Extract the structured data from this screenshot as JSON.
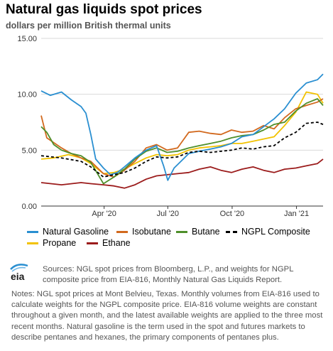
{
  "header": {
    "title": "Natural gas liquids spot prices",
    "subtitle": "dollars per million British thermal units"
  },
  "chart_data": {
    "type": "line",
    "title": "Natural gas liquids spot prices",
    "subtitle": "dollars per million British thermal units",
    "xlabel": "",
    "ylabel": "",
    "x_start": "2020-01-02",
    "x_end": "2021-02-08",
    "ylim": [
      0,
      15
    ],
    "y_ticks": [
      "0.00",
      "5.00",
      "10.00",
      "15.00"
    ],
    "x_ticks": [
      {
        "label": "Apr '20",
        "date": "2020-04-01"
      },
      {
        "label": "Jul '20",
        "date": "2020-07-01"
      },
      {
        "label": "Oct '20",
        "date": "2020-10-01"
      },
      {
        "label": "Jan '21",
        "date": "2021-01-01"
      }
    ],
    "grid": true,
    "legend_position": "bottom",
    "series": [
      {
        "name": "Natural Gasoline",
        "color": "#2a8fd1",
        "dash": "none",
        "points": [
          [
            "2020-01-02",
            10.3
          ],
          [
            "2020-01-15",
            9.9
          ],
          [
            "2020-01-31",
            10.2
          ],
          [
            "2020-02-14",
            9.5
          ],
          [
            "2020-02-28",
            8.9
          ],
          [
            "2020-03-06",
            8.3
          ],
          [
            "2020-03-13",
            6.4
          ],
          [
            "2020-03-20",
            4.2
          ],
          [
            "2020-03-31",
            3.4
          ],
          [
            "2020-04-10",
            2.8
          ],
          [
            "2020-04-20",
            3.0
          ],
          [
            "2020-04-30",
            3.5
          ],
          [
            "2020-05-15",
            4.3
          ],
          [
            "2020-05-31",
            5.0
          ],
          [
            "2020-06-15",
            5.4
          ],
          [
            "2020-06-25",
            3.6
          ],
          [
            "2020-07-01",
            2.3
          ],
          [
            "2020-07-10",
            3.4
          ],
          [
            "2020-07-31",
            4.7
          ],
          [
            "2020-08-15",
            4.9
          ],
          [
            "2020-08-31",
            5.1
          ],
          [
            "2020-09-15",
            5.3
          ],
          [
            "2020-09-30",
            5.6
          ],
          [
            "2020-10-15",
            6.2
          ],
          [
            "2020-10-31",
            6.4
          ],
          [
            "2020-11-15",
            7.1
          ],
          [
            "2020-11-30",
            7.8
          ],
          [
            "2020-12-15",
            8.7
          ],
          [
            "2020-12-31",
            10.1
          ],
          [
            "2021-01-15",
            11.0
          ],
          [
            "2021-01-31",
            11.3
          ],
          [
            "2021-02-08",
            11.8
          ]
        ]
      },
      {
        "name": "Isobutane",
        "color": "#d2691e",
        "dash": "none",
        "points": [
          [
            "2020-01-02",
            8.1
          ],
          [
            "2020-01-10",
            6.1
          ],
          [
            "2020-01-31",
            5.2
          ],
          [
            "2020-02-14",
            4.7
          ],
          [
            "2020-02-28",
            4.3
          ],
          [
            "2020-03-13",
            4.0
          ],
          [
            "2020-03-31",
            2.9
          ],
          [
            "2020-04-15",
            2.6
          ],
          [
            "2020-04-30",
            3.2
          ],
          [
            "2020-05-15",
            4.0
          ],
          [
            "2020-05-31",
            5.2
          ],
          [
            "2020-06-15",
            5.5
          ],
          [
            "2020-06-30",
            5.0
          ],
          [
            "2020-07-15",
            5.2
          ],
          [
            "2020-07-31",
            6.6
          ],
          [
            "2020-08-15",
            6.7
          ],
          [
            "2020-08-31",
            6.5
          ],
          [
            "2020-09-15",
            6.4
          ],
          [
            "2020-09-30",
            6.8
          ],
          [
            "2020-10-15",
            6.6
          ],
          [
            "2020-10-31",
            6.7
          ],
          [
            "2020-11-15",
            7.2
          ],
          [
            "2020-11-30",
            6.9
          ],
          [
            "2020-12-15",
            7.9
          ],
          [
            "2020-12-31",
            8.7
          ],
          [
            "2021-01-15",
            9.0
          ],
          [
            "2021-01-31",
            9.3
          ],
          [
            "2021-02-08",
            9.6
          ]
        ]
      },
      {
        "name": "Butane",
        "color": "#4e8f2b",
        "dash": "none",
        "points": [
          [
            "2020-01-02",
            7.1
          ],
          [
            "2020-01-10",
            6.6
          ],
          [
            "2020-01-20",
            5.5
          ],
          [
            "2020-01-31",
            5.0
          ],
          [
            "2020-02-14",
            4.7
          ],
          [
            "2020-02-28",
            4.5
          ],
          [
            "2020-03-13",
            3.9
          ],
          [
            "2020-03-31",
            2.0
          ],
          [
            "2020-04-15",
            2.6
          ],
          [
            "2020-04-30",
            3.3
          ],
          [
            "2020-05-15",
            4.2
          ],
          [
            "2020-05-31",
            4.9
          ],
          [
            "2020-06-15",
            5.2
          ],
          [
            "2020-06-30",
            4.8
          ],
          [
            "2020-07-15",
            4.9
          ],
          [
            "2020-07-31",
            5.2
          ],
          [
            "2020-08-15",
            5.4
          ],
          [
            "2020-08-31",
            5.6
          ],
          [
            "2020-09-15",
            5.8
          ],
          [
            "2020-09-30",
            6.1
          ],
          [
            "2020-10-15",
            6.3
          ],
          [
            "2020-10-31",
            6.4
          ],
          [
            "2020-11-15",
            6.8
          ],
          [
            "2020-11-30",
            7.3
          ],
          [
            "2020-12-15",
            7.5
          ],
          [
            "2020-12-31",
            8.5
          ],
          [
            "2021-01-15",
            9.2
          ],
          [
            "2021-01-31",
            9.6
          ],
          [
            "2021-02-08",
            9.0
          ]
        ]
      },
      {
        "name": "NGPL Composite",
        "color": "#000000",
        "dash": "4,3",
        "points": [
          [
            "2020-01-02",
            4.5
          ],
          [
            "2020-01-31",
            4.3
          ],
          [
            "2020-02-28",
            4.0
          ],
          [
            "2020-03-13",
            3.5
          ],
          [
            "2020-03-31",
            2.6
          ],
          [
            "2020-04-15",
            2.8
          ],
          [
            "2020-04-30",
            3.0
          ],
          [
            "2020-05-15",
            3.4
          ],
          [
            "2020-05-31",
            4.0
          ],
          [
            "2020-06-15",
            4.4
          ],
          [
            "2020-06-30",
            4.3
          ],
          [
            "2020-07-15",
            4.4
          ],
          [
            "2020-07-31",
            4.8
          ],
          [
            "2020-08-15",
            4.9
          ],
          [
            "2020-08-31",
            4.8
          ],
          [
            "2020-09-15",
            4.9
          ],
          [
            "2020-09-30",
            5.0
          ],
          [
            "2020-10-15",
            5.2
          ],
          [
            "2020-10-31",
            5.1
          ],
          [
            "2020-11-15",
            5.3
          ],
          [
            "2020-11-30",
            5.4
          ],
          [
            "2020-12-15",
            6.1
          ],
          [
            "2020-12-31",
            6.6
          ],
          [
            "2021-01-15",
            7.4
          ],
          [
            "2021-01-31",
            7.5
          ],
          [
            "2021-02-08",
            7.3
          ]
        ]
      },
      {
        "name": "Propane",
        "color": "#f2c200",
        "dash": "none",
        "points": [
          [
            "2020-01-02",
            4.2
          ],
          [
            "2020-01-20",
            4.3
          ],
          [
            "2020-02-10",
            4.6
          ],
          [
            "2020-02-28",
            4.3
          ],
          [
            "2020-03-13",
            3.8
          ],
          [
            "2020-03-31",
            2.9
          ],
          [
            "2020-04-15",
            3.0
          ],
          [
            "2020-04-30",
            3.3
          ],
          [
            "2020-05-15",
            3.8
          ],
          [
            "2020-05-31",
            4.3
          ],
          [
            "2020-06-15",
            4.6
          ],
          [
            "2020-06-30",
            4.5
          ],
          [
            "2020-07-15",
            4.6
          ],
          [
            "2020-07-31",
            5.0
          ],
          [
            "2020-08-15",
            5.2
          ],
          [
            "2020-08-31",
            5.3
          ],
          [
            "2020-09-15",
            5.4
          ],
          [
            "2020-09-30",
            5.6
          ],
          [
            "2020-10-15",
            5.6
          ],
          [
            "2020-10-31",
            5.8
          ],
          [
            "2020-11-15",
            6.0
          ],
          [
            "2020-11-30",
            6.2
          ],
          [
            "2020-12-15",
            7.2
          ],
          [
            "2020-12-31",
            8.4
          ],
          [
            "2021-01-15",
            10.2
          ],
          [
            "2021-01-31",
            10.0
          ],
          [
            "2021-02-08",
            9.2
          ]
        ]
      },
      {
        "name": "Ethane",
        "color": "#9b1b1b",
        "dash": "none",
        "points": [
          [
            "2020-01-02",
            2.1
          ],
          [
            "2020-01-31",
            1.9
          ],
          [
            "2020-02-28",
            2.1
          ],
          [
            "2020-03-13",
            2.0
          ],
          [
            "2020-03-31",
            1.9
          ],
          [
            "2020-04-15",
            1.8
          ],
          [
            "2020-04-30",
            1.6
          ],
          [
            "2020-05-15",
            1.9
          ],
          [
            "2020-05-31",
            2.4
          ],
          [
            "2020-06-15",
            2.7
          ],
          [
            "2020-06-30",
            2.8
          ],
          [
            "2020-07-15",
            2.9
          ],
          [
            "2020-07-31",
            3.0
          ],
          [
            "2020-08-15",
            3.3
          ],
          [
            "2020-08-31",
            3.5
          ],
          [
            "2020-09-15",
            3.2
          ],
          [
            "2020-09-30",
            3.0
          ],
          [
            "2020-10-15",
            3.3
          ],
          [
            "2020-10-31",
            3.5
          ],
          [
            "2020-11-15",
            3.2
          ],
          [
            "2020-11-30",
            3.0
          ],
          [
            "2020-12-15",
            3.3
          ],
          [
            "2020-12-31",
            3.4
          ],
          [
            "2021-01-15",
            3.6
          ],
          [
            "2021-01-31",
            3.8
          ],
          [
            "2021-02-08",
            4.2
          ]
        ]
      }
    ]
  },
  "legend": {
    "items": [
      {
        "label": "Natural Gasoline",
        "color": "#2a8fd1",
        "dashed": false
      },
      {
        "label": "Isobutane",
        "color": "#d2691e",
        "dashed": false
      },
      {
        "label": "Butane",
        "color": "#4e8f2b",
        "dashed": false
      },
      {
        "label": "NGPL Composite",
        "color": "#000000",
        "dashed": true
      },
      {
        "label": "Propane",
        "color": "#f2c200",
        "dashed": false
      },
      {
        "label": "Ethane",
        "color": "#9b1b1b",
        "dashed": false
      }
    ]
  },
  "footer": {
    "logo_text": "eia",
    "sources": "Sources: NGL spot prices from Bloomberg, L.P., and weights for NGPL composite price from EIA-816, Monthly Natural Gas Liquids Report.",
    "notes": "Notes: NGL spot prices at Mont Belvieu, Texas. Monthly volumes from EIA-816 used to calculate weights for the NGPL composite price. EIA-816 volume weights are constant throughout a given month, and the latest available weights are applied to the three most recent months. Natural gasoline is the term used in the spot and futures markets to describe pentanes and hexanes, the primary components of pentanes plus."
  }
}
